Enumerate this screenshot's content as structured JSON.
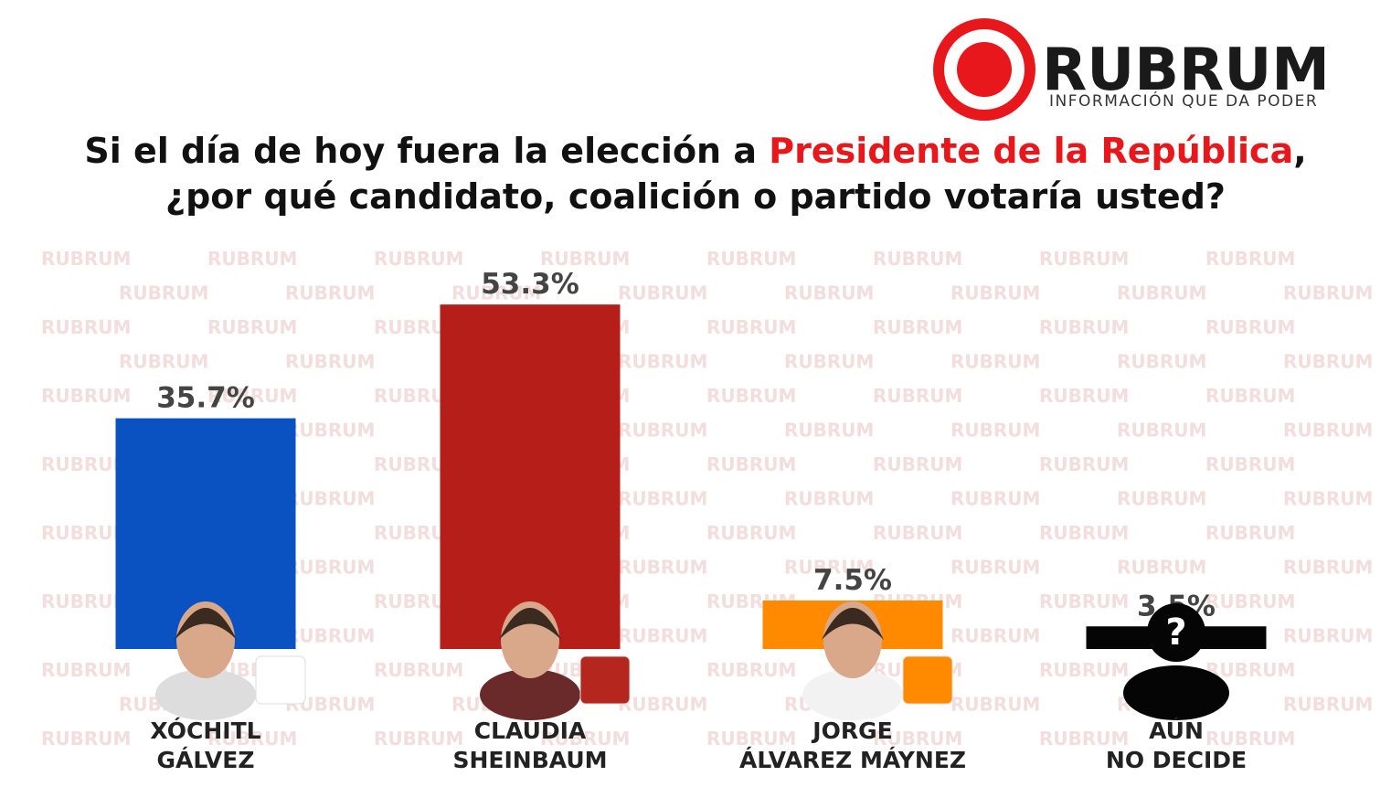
{
  "logo": {
    "name": "RUBRUM",
    "tagline": "INFORMACIÓN QUE DA PODER"
  },
  "chart_data": {
    "type": "bar",
    "title": {
      "prefix": "Si el día de hoy fuera la elección a ",
      "highlight": "Presidente de la República",
      "suffix": ",",
      "line2": "¿por qué candidato, coalición o partido votaría usted?"
    },
    "categories": [
      "XÓCHITL\nGÁLVEZ",
      "CLAUDIA\nSHEINBAUM",
      "JORGE\nÁLVAREZ MÁYNEZ",
      "AÚN\nNO DECIDE"
    ],
    "values": [
      35.7,
      53.3,
      7.5,
      3.5
    ],
    "value_labels": [
      "35.7%",
      "53.3%",
      "7.5%",
      "3.5%"
    ],
    "colors": [
      "#0a52c2",
      "#b51e19",
      "#ff8a00",
      "#050505"
    ],
    "unknown_icon": "?"
  }
}
